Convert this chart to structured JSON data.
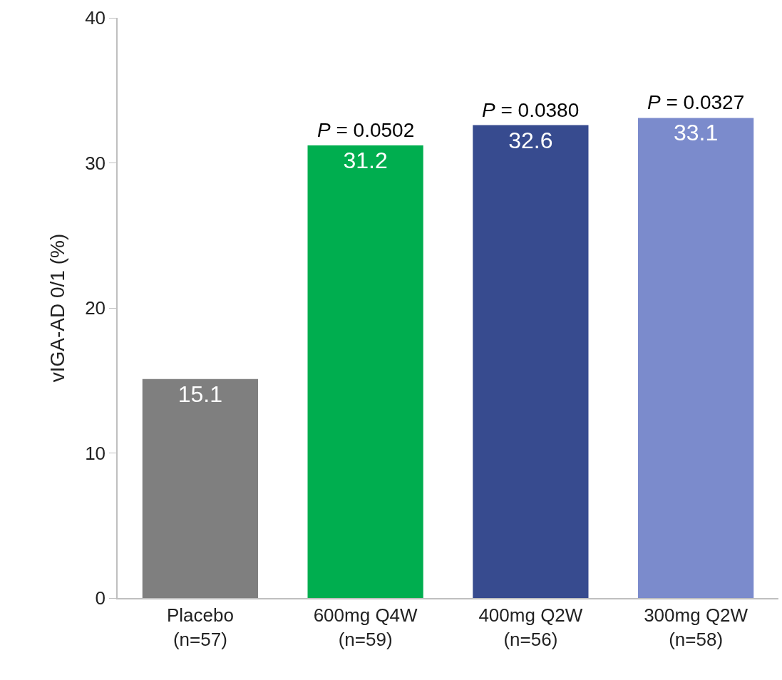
{
  "chart_data": {
    "type": "bar",
    "ylabel": "vIGA-AD 0/1 (%)",
    "categories": [
      "Placebo\n(n=57)",
      "600mg Q4W\n(n=59)",
      "400mg Q2W\n(n=56)",
      "300mg Q2W\n(n=58)"
    ],
    "values": [
      15.1,
      31.2,
      32.6,
      33.1
    ],
    "colors": [
      "#7f7f7f",
      "#00ae4f",
      "#374b8f",
      "#7b8bcc"
    ],
    "ylim": [
      0,
      40
    ],
    "yticks": [
      0,
      10,
      20,
      30,
      40
    ],
    "grid": false,
    "data_labels": true,
    "annotations": [
      {
        "text": "P = 0.0502",
        "x": "600mg Q4W\n(n=59)",
        "y": 31.2
      },
      {
        "text": "P = 0.0380",
        "x": "400mg Q2W\n(n=56)",
        "y": 32.6
      },
      {
        "text": "P = 0.0327",
        "x": "300mg Q2W\n(n=58)",
        "y": 33.1
      }
    ]
  }
}
